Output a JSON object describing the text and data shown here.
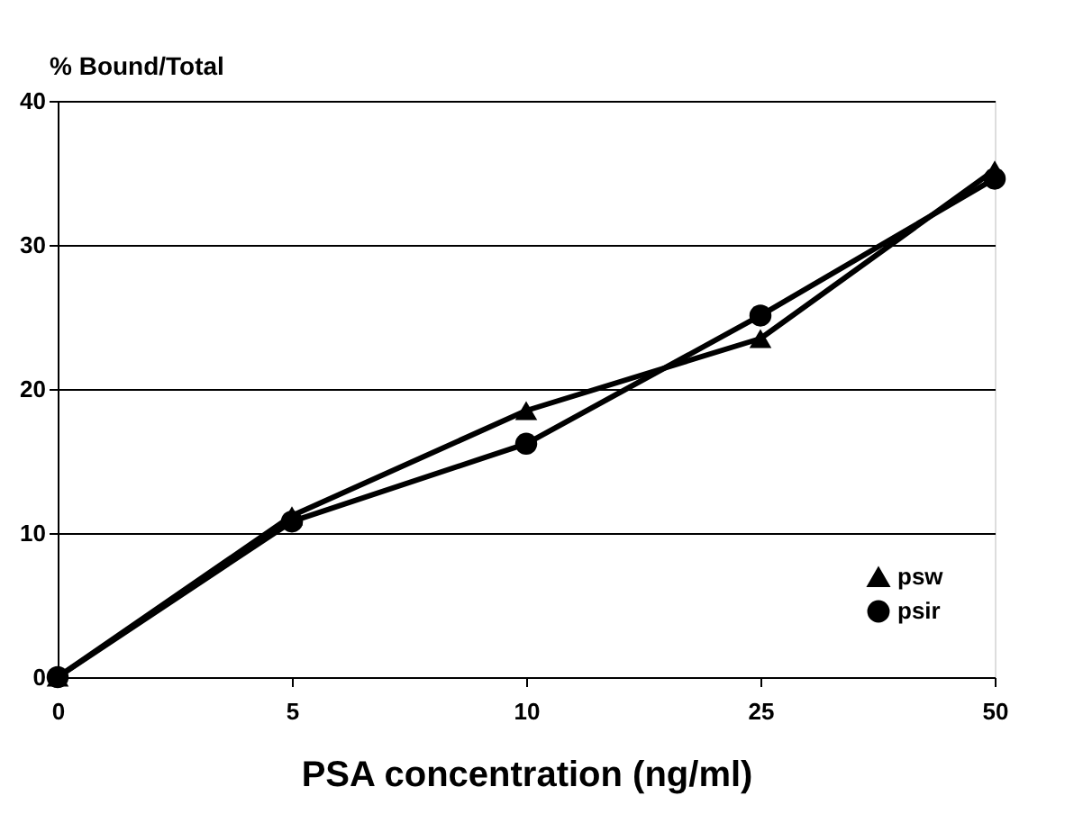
{
  "chart_data": {
    "type": "line",
    "xlabel": "PSA concentration (ng/ml)",
    "ylabel": "% Bound/Total",
    "categories": [
      "0",
      "5",
      "10",
      "25",
      "50"
    ],
    "series": [
      {
        "name": "psw",
        "color": "#000000",
        "marker": "triangle",
        "values": [
          0,
          11.2,
          18.5,
          23.5,
          35.2
        ]
      },
      {
        "name": "psir",
        "color": "#000000",
        "marker": "circle",
        "values": [
          0,
          10.8,
          16.2,
          25.1,
          34.6
        ]
      }
    ],
    "ylim": [
      0,
      40
    ],
    "yticks": [
      0,
      10,
      20,
      30,
      40
    ],
    "grid": "y",
    "legend": "bottom right",
    "line_style": "solid"
  }
}
